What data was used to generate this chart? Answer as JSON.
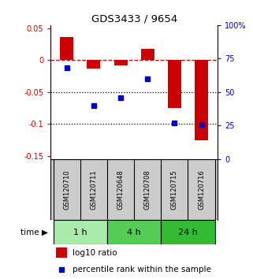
{
  "title": "GDS3433 / 9654",
  "samples": [
    "GSM120710",
    "GSM120711",
    "GSM120648",
    "GSM120708",
    "GSM120715",
    "GSM120716"
  ],
  "log10_ratio": [
    0.036,
    -0.013,
    -0.008,
    0.018,
    -0.075,
    -0.125
  ],
  "percentile_rank": [
    0.68,
    0.4,
    0.46,
    0.6,
    0.27,
    0.26
  ],
  "bar_color": "#cc0000",
  "dot_color": "#0000cc",
  "ylim_left": [
    -0.155,
    0.055
  ],
  "ylim_right": [
    0.0,
    1.0
  ],
  "yticks_left": [
    0.05,
    0.0,
    -0.05,
    -0.1,
    -0.15
  ],
  "yticks_right": [
    1.0,
    0.75,
    0.5,
    0.25,
    0.0
  ],
  "ytick_labels_left": [
    "0.05",
    "0",
    "-0.05",
    "-0.1",
    "-0.15"
  ],
  "ytick_labels_right": [
    "100%",
    "75",
    "50",
    "25",
    "0"
  ],
  "hline_y": 0.0,
  "dotted_lines": [
    -0.05,
    -0.1
  ],
  "time_groups": [
    {
      "label": "1 h",
      "start": 0,
      "end": 2,
      "color": "#aaeaaa"
    },
    {
      "label": "4 h",
      "start": 2,
      "end": 4,
      "color": "#55cc55"
    },
    {
      "label": "24 h",
      "start": 4,
      "end": 6,
      "color": "#33bb33"
    }
  ],
  "legend_bar_label": "log10 ratio",
  "legend_dot_label": "percentile rank within the sample",
  "time_label": "time",
  "bg": "#ffffff",
  "label_bg": "#cccccc",
  "bar_width": 0.5
}
